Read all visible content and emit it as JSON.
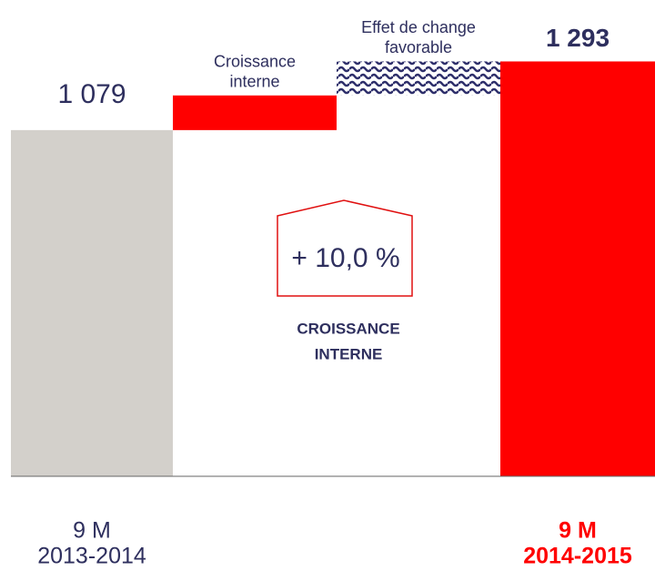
{
  "chart_data": {
    "type": "waterfall",
    "categories": [
      [
        "9 M",
        "2013-2014"
      ],
      [
        "Croissance",
        "interne"
      ],
      [
        "Effet de change",
        "favorable"
      ],
      [
        "9 M",
        "2014-2015"
      ]
    ],
    "values": [
      1079,
      108,
      106,
      1293
    ],
    "value_labels": [
      "1 079",
      null,
      null,
      "1 293"
    ],
    "measures": [
      "absolute",
      "relative",
      "relative",
      "total"
    ],
    "colors": [
      "#d3d0cb",
      "#ff0000",
      "#2e2f6b",
      "#ff0000"
    ],
    "patterned": [
      false,
      false,
      true,
      false
    ],
    "ylim": [
      0,
      1300
    ],
    "annotation": {
      "text": "+ 10,0 %",
      "caption": [
        "CROISSANCE",
        "INTERNE"
      ]
    }
  }
}
